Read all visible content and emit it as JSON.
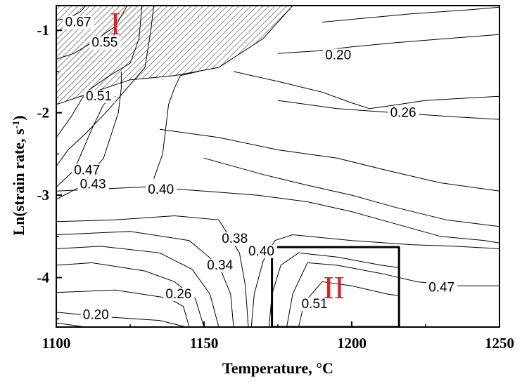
{
  "chart_data": {
    "type": "contour",
    "xlabel": "Temperature, °C",
    "ylabel_main": "Ln(strain rate, s",
    "ylabel_sup": "-1",
    "ylabel_end": ")",
    "xlim": [
      1100,
      1250
    ],
    "ylim": [
      -4.6,
      -0.7
    ],
    "xticks": [
      1100,
      1150,
      1200,
      1250
    ],
    "yticks": [
      -1,
      -2,
      -3,
      -4
    ],
    "xtick_labels": [
      "1100",
      "1150",
      "1200",
      "1250"
    ],
    "ytick_labels": [
      "-1",
      "-2",
      "-3",
      "-4"
    ],
    "grid": false,
    "colors": {
      "contour": "#000000",
      "region_label": "#e02020",
      "frame": "#000000"
    },
    "regions": [
      {
        "label": "I",
        "fill": "hatched",
        "polygon": [
          [
            1100,
            -0.7
          ],
          [
            1180,
            -0.7
          ],
          [
            1170,
            -1.1
          ],
          [
            1155,
            -1.45
          ],
          [
            1140,
            -1.55
          ],
          [
            1125,
            -1.6
          ],
          [
            1100,
            -1.9
          ]
        ],
        "label_at": [
          1120,
          -1.05
        ]
      },
      {
        "label": "II",
        "fill": "none",
        "polygon": [
          [
            1173,
            -3.63
          ],
          [
            1216,
            -3.63
          ],
          [
            1216,
            -4.6
          ],
          [
            1173,
            -4.6
          ]
        ],
        "label_at": [
          1194,
          -4.25
        ]
      }
    ],
    "contour_labels": [
      {
        "text": "0.67",
        "x": 1103,
        "y": -0.95
      },
      {
        "text": "0.55",
        "x": 1112,
        "y": -1.2
      },
      {
        "text": "0.20",
        "x": 1191,
        "y": -1.35
      },
      {
        "text": "0.51",
        "x": 1110,
        "y": -1.85
      },
      {
        "text": "0.26",
        "x": 1213,
        "y": -2.05
      },
      {
        "text": "0.47",
        "x": 1106,
        "y": -2.75
      },
      {
        "text": "0.43",
        "x": 1108,
        "y": -2.92
      },
      {
        "text": "0.40",
        "x": 1131,
        "y": -2.98
      },
      {
        "text": "0.38",
        "x": 1156,
        "y": -3.58
      },
      {
        "text": "0.40",
        "x": 1165,
        "y": -3.73
      },
      {
        "text": "0.34",
        "x": 1151,
        "y": -3.9
      },
      {
        "text": "0.26",
        "x": 1137,
        "y": -4.25
      },
      {
        "text": "0.47",
        "x": 1226,
        "y": -4.17
      },
      {
        "text": "0.51",
        "x": 1183,
        "y": -4.37
      },
      {
        "text": "0.20",
        "x": 1109,
        "y": -4.5
      }
    ],
    "contours": [
      {
        "level": "0.67",
        "points": [
          [
            1100,
            -0.88
          ],
          [
            1104,
            -0.85
          ],
          [
            1108,
            -0.78
          ],
          [
            1110,
            -0.7
          ]
        ]
      },
      {
        "level": "0.55",
        "points": [
          [
            1100,
            -1.35
          ],
          [
            1106,
            -1.28
          ],
          [
            1112,
            -1.15
          ],
          [
            1120,
            -0.95
          ],
          [
            1124,
            -0.7
          ]
        ]
      },
      {
        "level": "0.51",
        "points": [
          [
            1100,
            -2.3
          ],
          [
            1105,
            -2.05
          ],
          [
            1110,
            -1.75
          ],
          [
            1118,
            -1.55
          ],
          [
            1125,
            -1.4
          ],
          [
            1128,
            -1.1
          ],
          [
            1129,
            -0.7
          ]
        ]
      },
      {
        "level": "0.47-a",
        "points": [
          [
            1100,
            -2.65
          ],
          [
            1104,
            -2.45
          ],
          [
            1110,
            -2.25
          ],
          [
            1118,
            -1.95
          ],
          [
            1124,
            -1.7
          ],
          [
            1130,
            -1.45
          ],
          [
            1132,
            -1.0
          ],
          [
            1133,
            -0.7
          ]
        ]
      },
      {
        "level": "0.43",
        "points": [
          [
            1100,
            -2.9
          ],
          [
            1106,
            -2.7
          ],
          [
            1112,
            -2.2
          ],
          [
            1116,
            -1.9
          ],
          [
            1120,
            -1.8
          ]
        ]
      },
      {
        "level": "0.40-a",
        "points": [
          [
            1100,
            -3.05
          ],
          [
            1108,
            -2.9
          ],
          [
            1116,
            -2.55
          ],
          [
            1121,
            -2.0
          ],
          [
            1122,
            -1.7
          ],
          [
            1122,
            -1.5
          ]
        ]
      },
      {
        "level": "0.40-b",
        "points": [
          [
            1133,
            -2.8
          ],
          [
            1136,
            -2.5
          ],
          [
            1137,
            -2.2
          ],
          [
            1138,
            -1.9
          ],
          [
            1140,
            -1.7
          ],
          [
            1142,
            -1.55
          ],
          [
            1148,
            -1.5
          ]
        ]
      },
      {
        "level": "0.40-c",
        "points": [
          [
            1100,
            -3.32
          ],
          [
            1120,
            -3.3
          ],
          [
            1140,
            -3.25
          ],
          [
            1155,
            -3.3
          ],
          [
            1162,
            -3.7
          ],
          [
            1164,
            -4.1
          ],
          [
            1165,
            -4.6
          ]
        ]
      },
      {
        "level": "0.38",
        "points": [
          [
            1100,
            -3.48
          ],
          [
            1125,
            -3.44
          ],
          [
            1145,
            -3.55
          ],
          [
            1155,
            -3.85
          ],
          [
            1159,
            -4.2
          ],
          [
            1160,
            -4.6
          ]
        ]
      },
      {
        "level": "0.34",
        "points": [
          [
            1100,
            -3.65
          ],
          [
            1115,
            -3.62
          ],
          [
            1135,
            -3.7
          ],
          [
            1146,
            -3.9
          ],
          [
            1152,
            -4.2
          ],
          [
            1155,
            -4.6
          ]
        ]
      },
      {
        "level": "0.26-a",
        "points": [
          [
            1100,
            -3.85
          ],
          [
            1112,
            -3.82
          ],
          [
            1130,
            -3.92
          ],
          [
            1140,
            -4.05
          ],
          [
            1147,
            -4.25
          ],
          [
            1150,
            -4.6
          ]
        ]
      },
      {
        "level": "0.20-a",
        "points": [
          [
            1100,
            -4.18
          ],
          [
            1120,
            -4.15
          ],
          [
            1138,
            -4.25
          ],
          [
            1143,
            -4.35
          ],
          [
            1145,
            -4.6
          ]
        ]
      },
      {
        "level": "0.20-b",
        "points": [
          [
            1100,
            -4.42
          ],
          [
            1118,
            -4.48
          ],
          [
            1135,
            -4.52
          ],
          [
            1144,
            -4.6
          ]
        ]
      },
      {
        "level": "0.20-c",
        "points": [
          [
            1100,
            -4.55
          ],
          [
            1110,
            -4.6
          ]
        ]
      },
      {
        "level": "0.38-b",
        "points": [
          [
            1100,
            -2.95
          ],
          [
            1130,
            -2.9
          ],
          [
            1150,
            -2.95
          ],
          [
            1168,
            -3.0
          ],
          [
            1185,
            -3.08
          ],
          [
            1200,
            -3.2
          ],
          [
            1215,
            -3.35
          ],
          [
            1230,
            -3.5
          ],
          [
            1245,
            -3.55
          ],
          [
            1250,
            -3.58
          ]
        ]
      },
      {
        "level": "0.34-b",
        "points": [
          [
            1150,
            -2.55
          ],
          [
            1170,
            -2.75
          ],
          [
            1185,
            -2.88
          ],
          [
            1200,
            -3.0
          ],
          [
            1215,
            -3.15
          ],
          [
            1232,
            -3.3
          ],
          [
            1250,
            -3.38
          ]
        ]
      },
      {
        "level": "0.26-b",
        "points": [
          [
            1135,
            -2.2
          ],
          [
            1155,
            -2.3
          ],
          [
            1175,
            -2.45
          ],
          [
            1195,
            -2.55
          ],
          [
            1212,
            -2.7
          ],
          [
            1230,
            -2.85
          ],
          [
            1250,
            -2.95
          ]
        ]
      },
      {
        "level": "0.26-c",
        "points": [
          [
            1175,
            -1.85
          ],
          [
            1195,
            -1.95
          ],
          [
            1215,
            -2.0
          ],
          [
            1235,
            -2.05
          ],
          [
            1250,
            -2.08
          ]
        ]
      },
      {
        "level": "0.20-d",
        "points": [
          [
            1160,
            -1.5
          ],
          [
            1175,
            -1.62
          ],
          [
            1190,
            -1.75
          ],
          [
            1200,
            -1.88
          ],
          [
            1206,
            -1.95
          ],
          [
            1212,
            -1.92
          ],
          [
            1225,
            -1.85
          ],
          [
            1240,
            -1.82
          ],
          [
            1250,
            -1.8
          ]
        ]
      },
      {
        "level": "0.20-e",
        "points": [
          [
            1175,
            -1.28
          ],
          [
            1188,
            -1.25
          ],
          [
            1200,
            -1.2
          ],
          [
            1215,
            -1.15
          ],
          [
            1232,
            -1.1
          ],
          [
            1250,
            -1.05
          ]
        ]
      },
      {
        "level": "0.20-f",
        "points": [
          [
            1190,
            -0.9
          ],
          [
            1205,
            -0.85
          ],
          [
            1220,
            -0.8
          ],
          [
            1240,
            -0.75
          ],
          [
            1250,
            -0.72
          ]
        ]
      },
      {
        "level": "0.47-b",
        "points": [
          [
            1166,
            -4.6
          ],
          [
            1167,
            -4.2
          ],
          [
            1170,
            -3.8
          ],
          [
            1174,
            -3.55
          ],
          [
            1180,
            -3.48
          ],
          [
            1200,
            -3.55
          ],
          [
            1220,
            -3.6
          ],
          [
            1235,
            -3.62
          ],
          [
            1250,
            -3.65
          ]
        ]
      },
      {
        "level": "0.47-c",
        "points": [
          [
            1172,
            -4.6
          ],
          [
            1173,
            -4.2
          ],
          [
            1176,
            -3.85
          ],
          [
            1182,
            -3.7
          ],
          [
            1195,
            -3.75
          ],
          [
            1210,
            -3.85
          ],
          [
            1216,
            -3.88
          ]
        ]
      },
      {
        "level": "0.47-d",
        "points": [
          [
            1178,
            -4.6
          ],
          [
            1180,
            -4.2
          ],
          [
            1185,
            -3.82
          ],
          [
            1195,
            -3.85
          ],
          [
            1210,
            -3.95
          ],
          [
            1222,
            -4.05
          ],
          [
            1235,
            -4.1
          ],
          [
            1250,
            -4.1
          ]
        ]
      },
      {
        "level": "0.51",
        "points": [
          [
            1182,
            -4.6
          ],
          [
            1184,
            -4.3
          ],
          [
            1190,
            -4.05
          ],
          [
            1200,
            -4.1
          ],
          [
            1212,
            -4.2
          ],
          [
            1216,
            -4.22
          ]
        ]
      }
    ]
  }
}
